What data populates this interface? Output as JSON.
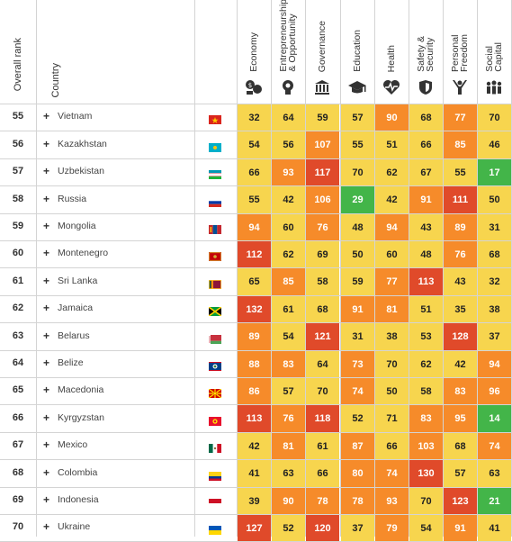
{
  "header": {
    "rank_label": "Overall rank",
    "country_label": "Country",
    "pillars": [
      {
        "label": "Economy",
        "icon": "economy-icon"
      },
      {
        "label": "Entrepreneurship\n& Opportunity",
        "icon": "lightbulb-icon"
      },
      {
        "label": "Governance",
        "icon": "government-building-icon"
      },
      {
        "label": "Education",
        "icon": "graduation-cap-icon"
      },
      {
        "label": "Health",
        "icon": "heart-pulse-icon"
      },
      {
        "label": "Safety &\nSecurity",
        "icon": "shield-icon"
      },
      {
        "label": "Personal\nFreedom",
        "icon": "person-arms-up-icon"
      },
      {
        "label": "Social\nCapital",
        "icon": "people-group-icon"
      }
    ]
  },
  "colors": {
    "dark_red": "#e04a2a",
    "orange": "#f68b2a",
    "yellow": "#f7d54e",
    "green": "#43b549"
  },
  "chart_data": {
    "type": "table",
    "columns": [
      "Overall rank",
      "Country",
      "Economy",
      "Entrepreneurship & Opportunity",
      "Governance",
      "Education",
      "Health",
      "Safety & Security",
      "Personal Freedom",
      "Social Capital"
    ],
    "rows": [
      {
        "rank": "55",
        "country": "Vietnam",
        "flag": "vn",
        "values": [
          32,
          64,
          59,
          57,
          90,
          68,
          77,
          70
        ]
      },
      {
        "rank": "56",
        "country": "Kazakhstan",
        "flag": "kz",
        "values": [
          54,
          56,
          107,
          55,
          51,
          66,
          85,
          46
        ]
      },
      {
        "rank": "57",
        "country": "Uzbekistan",
        "flag": "uz",
        "values": [
          66,
          93,
          117,
          70,
          62,
          67,
          55,
          17
        ]
      },
      {
        "rank": "58",
        "country": "Russia",
        "flag": "ru",
        "values": [
          55,
          42,
          106,
          29,
          42,
          91,
          111,
          50
        ]
      },
      {
        "rank": "59",
        "country": "Mongolia",
        "flag": "mn",
        "values": [
          94,
          60,
          76,
          48,
          94,
          43,
          89,
          31
        ]
      },
      {
        "rank": "60",
        "country": "Montenegro",
        "flag": "me",
        "values": [
          112,
          62,
          69,
          50,
          60,
          48,
          76,
          68
        ]
      },
      {
        "rank": "61",
        "country": "Sri Lanka",
        "flag": "lk",
        "values": [
          65,
          85,
          58,
          59,
          77,
          113,
          43,
          32
        ]
      },
      {
        "rank": "62",
        "country": "Jamaica",
        "flag": "jm",
        "values": [
          132,
          61,
          68,
          91,
          81,
          51,
          35,
          38
        ]
      },
      {
        "rank": "63",
        "country": "Belarus",
        "flag": "by",
        "values": [
          89,
          54,
          121,
          31,
          38,
          53,
          128,
          37
        ]
      },
      {
        "rank": "64",
        "country": "Belize",
        "flag": "bz",
        "values": [
          88,
          83,
          64,
          73,
          70,
          62,
          42,
          94
        ]
      },
      {
        "rank": "65",
        "country": "Macedonia",
        "flag": "mk",
        "values": [
          86,
          57,
          70,
          74,
          50,
          58,
          83,
          96
        ]
      },
      {
        "rank": "66",
        "country": "Kyrgyzstan",
        "flag": "kg",
        "values": [
          113,
          76,
          118,
          52,
          71,
          83,
          95,
          14
        ]
      },
      {
        "rank": "67",
        "country": "Mexico",
        "flag": "mx",
        "values": [
          42,
          81,
          61,
          87,
          66,
          103,
          68,
          74
        ]
      },
      {
        "rank": "68",
        "country": "Colombia",
        "flag": "co",
        "values": [
          41,
          63,
          66,
          80,
          74,
          130,
          57,
          63
        ]
      },
      {
        "rank": "69",
        "country": "Indonesia",
        "flag": "id",
        "values": [
          39,
          90,
          78,
          78,
          93,
          70,
          123,
          21
        ]
      },
      {
        "rank": "70",
        "country": "Ukraine",
        "flag": "ua",
        "values": [
          127,
          52,
          120,
          37,
          79,
          54,
          91,
          41
        ]
      }
    ]
  }
}
